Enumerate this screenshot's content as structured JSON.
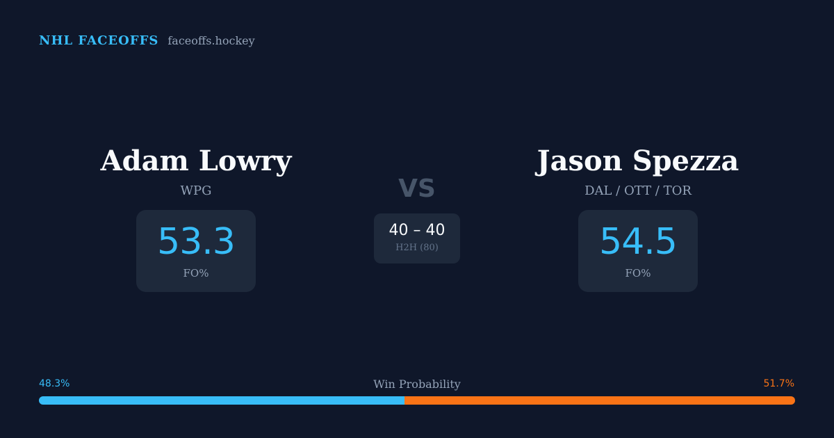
{
  "brand": {
    "title": "NHL FACEOFFS",
    "site": "faceoffs.hockey"
  },
  "player1": {
    "name": "Adam Lowry",
    "team": "WPG",
    "fo_pct": "53.3",
    "fo_label": "FO%"
  },
  "player2": {
    "name": "Jason Spezza",
    "team": "DAL / OTT / TOR",
    "fo_pct": "54.5",
    "fo_label": "FO%"
  },
  "matchup": {
    "vs": "VS",
    "h2h_score": "40 – 40",
    "h2h_label": "H2H (80)"
  },
  "win_probability": {
    "label": "Win Probability",
    "left_text": "48.3%",
    "right_text": "51.7%",
    "left_fraction": 0.483,
    "left_color": "#38bdf8",
    "right_color": "#f97316"
  }
}
